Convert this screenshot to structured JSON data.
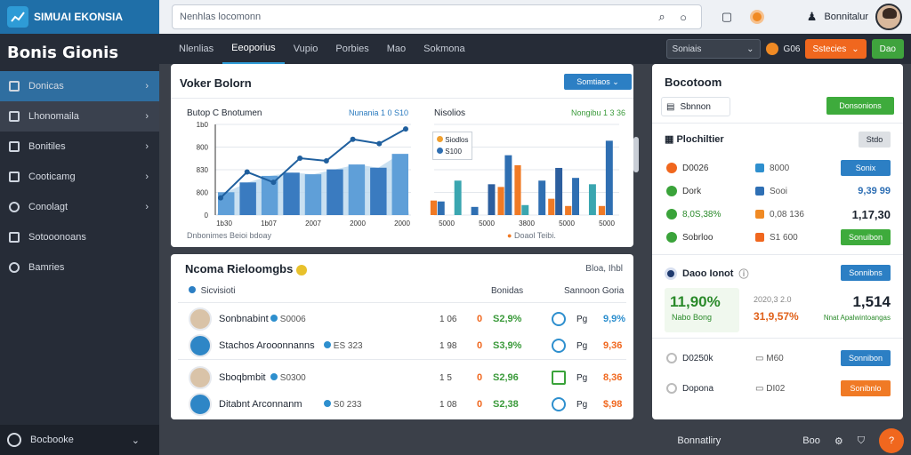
{
  "app": {
    "brand": "SIMUAI EKONSIA",
    "page_title": "Bonis Gionis"
  },
  "sidebar": {
    "items": [
      {
        "label": "Donicas",
        "icon": "dashboard-icon"
      },
      {
        "label": "Lhonomaila",
        "icon": "briefcase-icon"
      },
      {
        "label": "Bonitiles",
        "icon": "chart-icon"
      },
      {
        "label": "Cooticamg",
        "icon": "document-icon"
      },
      {
        "label": "Conolagt",
        "icon": "gear-icon"
      },
      {
        "label": "Sotooonoans",
        "icon": "mail-icon"
      },
      {
        "label": "Bamries",
        "icon": "chat-icon"
      }
    ],
    "footer": "Bocbooke"
  },
  "topbar": {
    "search_placeholder": "Nenhlas locomonn",
    "user_name": "Bonnitalur"
  },
  "subnav": {
    "tabs": [
      "Nlenlias",
      "Eeoporius",
      "Vupio",
      "Porbies",
      "Mao",
      "Sokmona"
    ],
    "select": "Soniais",
    "badge": "G06",
    "orange_btn": "Sstecies",
    "green_btn": "Dao"
  },
  "chart_panel": {
    "title": "Voker Bolorn",
    "button": "Somtiaos",
    "left_title": "Butop C Bnotumen",
    "left_legend": "Nunania 1 0 S10",
    "left_footer": "Dnbonimes Beioi bdoay",
    "right_title": "Nisolios",
    "right_legend": "Nongibu 1 3 36",
    "right_footer": "Doaol Teibi.",
    "legend_items": [
      "Siodlos",
      "S100"
    ]
  },
  "chart_data": {
    "type": "bar",
    "charts": [
      {
        "y_ticks": [
          "1b0",
          "800",
          "830",
          "800",
          "0"
        ],
        "x_ticks": [
          "1b30",
          "1b07",
          "2007",
          "2000",
          "2000"
        ],
        "series": [
          {
            "name": "",
            "values": [
              28,
              40,
              48,
              52,
              50,
              56,
              62,
              58,
              75
            ]
          }
        ],
        "line": [
          20,
          50,
          38,
          66,
          63,
          88,
          83,
          100
        ]
      },
      {
        "x_ticks": [
          "5000",
          "5000",
          "3800",
          "5000",
          "5000"
        ],
        "series": [
          {
            "name": "",
            "values": [
              15,
              38,
              9,
              34,
              66,
              11,
              38,
              52,
              41,
              34,
              82
            ]
          },
          {
            "name": "",
            "values": [
              16,
              31,
              55,
              18,
              10,
              10
            ]
          }
        ]
      }
    ]
  },
  "list_panel": {
    "title": "Ncoma Rieloomgbs",
    "sub": "Bloa, Ihbl",
    "head": [
      "Sicvisioti",
      "Bonidas",
      "Sannoon Goria"
    ],
    "rows": [
      {
        "name": "Sonbnabint",
        "tag": "S0006",
        "num": "1 06",
        "pct": "S2,9%",
        "unit": "Pg",
        "val": "9,9%",
        "valc": "#2e8fce"
      },
      {
        "name": "Stachos Arooonnanns",
        "tag": "ES 323",
        "num": "1 98",
        "pct": "S3,9%",
        "unit": "Pg",
        "val": "9,36",
        "valc": "#f0671e"
      },
      {
        "name": "Sboqbmbit",
        "tag": "S0300",
        "num": "1 5",
        "pct": "S2,96",
        "unit": "Pg",
        "val": "8,36",
        "valc": "#f0671e"
      },
      {
        "name": "Ditabnt Arconnanm",
        "tag": "S0 233",
        "num": "1 08",
        "pct": "S2,38",
        "unit": "Pg",
        "val": "$,98",
        "valc": "#f0671e"
      }
    ]
  },
  "right_panel": {
    "title": "Bocotoom",
    "select": "Sbnnon",
    "green_btn": "Donsonions",
    "list_title": "Plochiltier",
    "list_btn": "Stdo",
    "items": [
      {
        "a": "D0026",
        "b": "8000",
        "btn": "Sonix"
      },
      {
        "a": "Dork",
        "b": "Sooi",
        "val": "9,39 99"
      },
      {
        "a": "8,0S,38%",
        "b": "0,08 136",
        "val": "1,17,30"
      },
      {
        "a": "Sobrloo",
        "b": "S1 600",
        "btn": "Sonuibon"
      }
    ],
    "stats_title": "Daoo Ionot",
    "stats_btn": "Sonnibns",
    "stat1": "11,90%",
    "stat1_sub": "Nabo Bong",
    "stat2": "31,9,57%",
    "stat2_top": "2020,3 2.0",
    "stat3": "1,514",
    "stat3_sub": "Nnat Apalwintoangas",
    "foot": [
      {
        "a": "D0250k",
        "b": "M60",
        "btn": "Sonnibon"
      },
      {
        "a": "Dopona",
        "b": "DI02",
        "btn": "Sonibnlo"
      }
    ]
  },
  "bottombar": {
    "label": "Bonnatliry",
    "item": "Boo"
  }
}
